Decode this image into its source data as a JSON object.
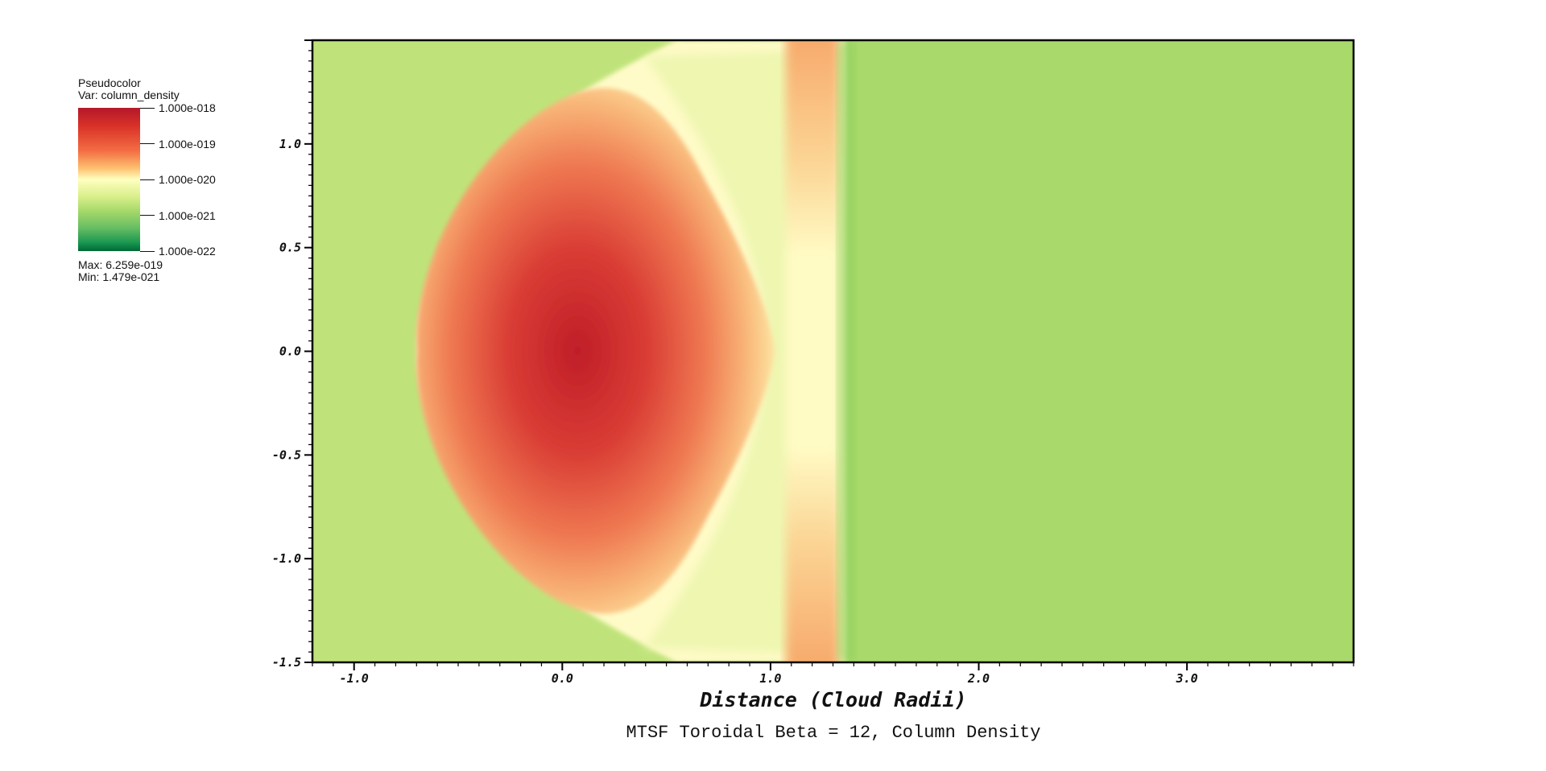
{
  "legend": {
    "plot_type": "Pseudocolor",
    "variable": "Var: column_density",
    "ticks": [
      "1.000e-018",
      "1.000e-019",
      "1.000e-020",
      "1.000e-021",
      "1.000e-022"
    ],
    "max_label": "Max:  6.259e-019",
    "min_label": "Min:  1.479e-021",
    "colors": [
      "#b2182b",
      "#d6604d",
      "#f4a582",
      "#ffffbf",
      "#bfe36e",
      "#66bd63",
      "#007a3d"
    ]
  },
  "chart_data": {
    "type": "heatmap",
    "title": "MTSF Toroidal Beta = 12, Column Density",
    "xlabel": "Distance (Cloud Radii)",
    "ylabel": "",
    "xlim": [
      -1.2,
      3.8
    ],
    "ylim": [
      -1.5,
      1.5
    ],
    "x_ticks": [
      "-1.0",
      "0.0",
      "1.0",
      "2.0",
      "3.0"
    ],
    "y_ticks": [
      "1.0",
      "0.5",
      "0.0",
      "-0.5",
      "-1.0",
      "-1.5"
    ],
    "colorscale": "log",
    "value_range": [
      1e-22,
      1e-18
    ],
    "data_max": 6.259e-19,
    "data_min": 1.479e-21,
    "background_color": "#a8d96a"
  }
}
